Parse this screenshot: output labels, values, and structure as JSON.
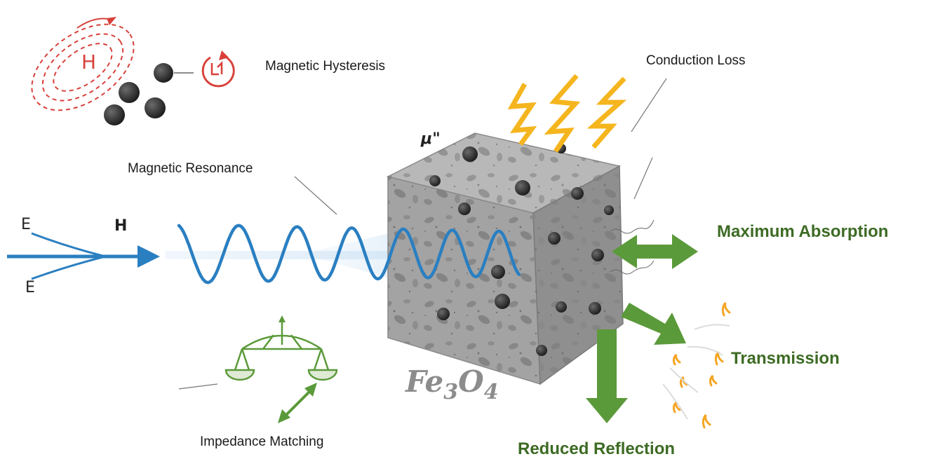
{
  "labels": {
    "magnetic_hysteresis": "Magnetic Hysteresis",
    "conduction_loss": "Conduction Loss",
    "magnetic_resonance": "Magnetic Resonance",
    "maximum_absorption": "Maximum Absorption",
    "transmission": "Transmission",
    "reduced_reflection": "Reduced Reflection",
    "impedance_matching": "Impedance Matching",
    "mu_double_prime": "μ\"",
    "field_e_top": "E",
    "field_e_bottom": "E",
    "field_h": "H",
    "hysteresis_h": "H"
  },
  "material": {
    "formula_base": "Fe",
    "formula_sub1": "3",
    "formula_o": "O",
    "formula_sub2": "4"
  },
  "colors": {
    "wave_blue": "#2a7fc1",
    "hysteresis_red": "#d9403a",
    "lightning_orange": "#f5b51e",
    "arrow_green": "#5b9a3a",
    "label_green": "#3d6b24",
    "cube_gray": "#9a9a9a"
  }
}
